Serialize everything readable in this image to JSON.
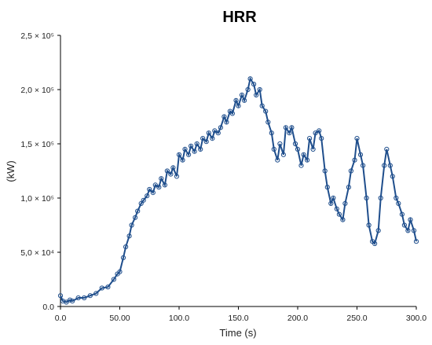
{
  "chart_data": {
    "type": "line",
    "title": "HRR",
    "xlabel": "Time (s)",
    "ylabel": "(kW)",
    "xlim": [
      0,
      300
    ],
    "ylim": [
      0,
      250000
    ],
    "x_ticks": [
      {
        "value": 0,
        "label": "0.0"
      },
      {
        "value": 50,
        "label": "50.00"
      },
      {
        "value": 100,
        "label": "100.0"
      },
      {
        "value": 150,
        "label": "150.0"
      },
      {
        "value": 200,
        "label": "200.0"
      },
      {
        "value": 250,
        "label": "250.0"
      },
      {
        "value": 300,
        "label": "300.0"
      }
    ],
    "y_ticks": [
      {
        "value": 0,
        "label": "0.0"
      },
      {
        "value": 50000,
        "label": "5,0 × 10⁴"
      },
      {
        "value": 100000,
        "label": "1,0 × 10⁵"
      },
      {
        "value": 150000,
        "label": "1,5 × 10⁵"
      },
      {
        "value": 200000,
        "label": "2,0 × 10⁵"
      },
      {
        "value": 250000,
        "label": "2,5 × 10⁵"
      }
    ],
    "grid": false,
    "marker": "open-circle",
    "series": [
      {
        "color": "#1f4e8c",
        "x": [
          0,
          2,
          5,
          8,
          10,
          15,
          20,
          25,
          30,
          35,
          40,
          45,
          48,
          50,
          53,
          55,
          58,
          60,
          63,
          65,
          68,
          70,
          73,
          75,
          78,
          80,
          83,
          85,
          88,
          90,
          93,
          95,
          98,
          100,
          103,
          105,
          108,
          110,
          113,
          115,
          118,
          120,
          123,
          125,
          128,
          130,
          133,
          135,
          138,
          140,
          143,
          145,
          148,
          150,
          153,
          155,
          158,
          160,
          163,
          165,
          168,
          170,
          173,
          175,
          178,
          180,
          183,
          185,
          188,
          190,
          193,
          195,
          198,
          200,
          203,
          205,
          208,
          210,
          213,
          215,
          218,
          220,
          223,
          225,
          228,
          230,
          233,
          235,
          238,
          240,
          243,
          245,
          248,
          250,
          253,
          255,
          258,
          260,
          263,
          265,
          268,
          270,
          273,
          275,
          278,
          280,
          283,
          285,
          288,
          290,
          293,
          295,
          298,
          300
        ],
        "values": [
          10000,
          5000,
          4000,
          6000,
          5000,
          8000,
          8000,
          10000,
          12000,
          17000,
          18000,
          25000,
          30000,
          32000,
          45000,
          55000,
          65000,
          75000,
          82000,
          88000,
          95000,
          98000,
          102000,
          108000,
          105000,
          112000,
          110000,
          118000,
          112000,
          125000,
          122000,
          128000,
          120000,
          140000,
          135000,
          145000,
          140000,
          148000,
          143000,
          150000,
          145000,
          155000,
          152000,
          160000,
          155000,
          162000,
          160000,
          165000,
          175000,
          170000,
          180000,
          178000,
          190000,
          185000,
          195000,
          190000,
          200000,
          210000,
          205000,
          195000,
          200000,
          185000,
          180000,
          170000,
          160000,
          145000,
          135000,
          150000,
          140000,
          165000,
          160000,
          165000,
          150000,
          145000,
          130000,
          140000,
          135000,
          155000,
          145000,
          160000,
          162000,
          155000,
          125000,
          110000,
          95000,
          100000,
          90000,
          85000,
          80000,
          95000,
          110000,
          125000,
          135000,
          155000,
          140000,
          130000,
          100000,
          75000,
          60000,
          58000,
          70000,
          100000,
          130000,
          145000,
          130000,
          120000,
          100000,
          95000,
          85000,
          75000,
          70000,
          80000,
          70000,
          60000
        ]
      }
    ]
  }
}
